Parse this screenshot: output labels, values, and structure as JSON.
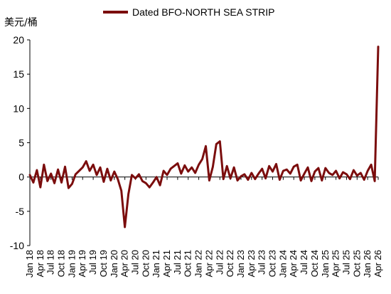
{
  "chart_data": {
    "type": "line",
    "ylabel": "美元/桶",
    "ylim": [
      -10,
      20
    ],
    "yticks": [
      -10,
      -5,
      0,
      5,
      10,
      15,
      20
    ],
    "legend": {
      "position": "top",
      "entries": [
        "Dated BFO-NORTH SEA STRIP"
      ]
    },
    "series_color": "#7b0d0d",
    "grid": false,
    "xlim": [
      "2018-01",
      "2026-04"
    ],
    "xtick_labels": [
      "Jan 18",
      "Apr 18",
      "Jul 18",
      "Oct 18",
      "Jan 19",
      "Apr 19",
      "Jul 19",
      "Oct 19",
      "Jan 20",
      "Apr 20",
      "Jul 20",
      "Oct 20",
      "Jan 21",
      "Apr 21",
      "Jul 21",
      "Oct 21",
      "Jan 22",
      "Apr 22",
      "Jul 22",
      "Oct 22",
      "Jan 23",
      "Apr 23",
      "Jul 23",
      "Oct 23",
      "Jan 24",
      "Apr 24",
      "Jul 24",
      "Oct 24",
      "Jan 25",
      "Apr 25",
      "Jul 25",
      "Oct 25",
      "Jan 26",
      "Apr 26"
    ],
    "series": [
      {
        "name": "Dated BFO-NORTH SEA STRIP",
        "x": [
          "2018-01",
          "2018-02",
          "2018-03",
          "2018-04",
          "2018-05",
          "2018-06",
          "2018-07",
          "2018-08",
          "2018-09",
          "2018-10",
          "2018-11",
          "2018-12",
          "2019-01",
          "2019-02",
          "2019-03",
          "2019-04",
          "2019-05",
          "2019-06",
          "2019-07",
          "2019-08",
          "2019-09",
          "2019-10",
          "2019-11",
          "2019-12",
          "2020-01",
          "2020-02",
          "2020-03",
          "2020-04",
          "2020-05",
          "2020-06",
          "2020-07",
          "2020-08",
          "2020-09",
          "2020-10",
          "2020-11",
          "2020-12",
          "2021-01",
          "2021-02",
          "2021-03",
          "2021-04",
          "2021-05",
          "2021-06",
          "2021-07",
          "2021-08",
          "2021-09",
          "2021-10",
          "2021-11",
          "2021-12",
          "2022-01",
          "2022-02",
          "2022-03",
          "2022-04",
          "2022-05",
          "2022-06",
          "2022-07",
          "2022-08",
          "2022-09",
          "2022-10",
          "2022-11",
          "2022-12",
          "2023-01",
          "2023-02",
          "2023-03",
          "2023-04",
          "2023-05",
          "2023-06",
          "2023-07",
          "2023-08",
          "2023-09",
          "2023-10",
          "2023-11",
          "2023-12",
          "2024-01",
          "2024-02",
          "2024-03",
          "2024-04",
          "2024-05",
          "2024-06",
          "2024-07",
          "2024-08",
          "2024-09",
          "2024-10",
          "2024-11",
          "2024-12",
          "2025-01",
          "2025-02",
          "2025-03",
          "2025-04",
          "2025-05",
          "2025-06",
          "2025-07",
          "2025-08",
          "2025-09",
          "2025-10",
          "2025-11",
          "2025-12",
          "2026-01",
          "2026-02",
          "2026-03",
          "2026-04"
        ],
        "values": [
          0.3,
          -0.8,
          1.0,
          -1.5,
          1.8,
          -0.6,
          0.5,
          -0.9,
          1.1,
          -0.8,
          1.5,
          -1.6,
          -1.0,
          0.4,
          0.9,
          1.4,
          2.3,
          0.9,
          1.8,
          0.3,
          1.4,
          -0.7,
          1.2,
          -0.5,
          0.8,
          -0.3,
          -2.0,
          -7.3,
          -2.5,
          0.3,
          -0.2,
          0.4,
          -0.6,
          -0.9,
          -1.5,
          -0.8,
          0.0,
          -1.2,
          0.9,
          0.3,
          1.2,
          1.6,
          2.0,
          0.5,
          1.7,
          0.8,
          1.4,
          0.6,
          1.8,
          2.6,
          4.5,
          -0.5,
          1.5,
          4.8,
          5.2,
          -0.3,
          1.6,
          -0.2,
          1.4,
          -0.5,
          0.1,
          0.4,
          -0.4,
          0.6,
          -0.3,
          0.5,
          1.2,
          -0.2,
          1.6,
          0.8,
          1.9,
          -0.4,
          0.9,
          1.1,
          0.5,
          1.5,
          1.8,
          -0.5,
          0.5,
          1.4,
          -0.6,
          0.8,
          1.3,
          -0.5,
          1.3,
          0.6,
          0.3,
          0.9,
          -0.2,
          0.7,
          0.4,
          -0.3,
          1.0,
          0.2,
          0.6,
          -0.4,
          0.9,
          1.8,
          -0.6,
          19.0
        ]
      }
    ]
  }
}
